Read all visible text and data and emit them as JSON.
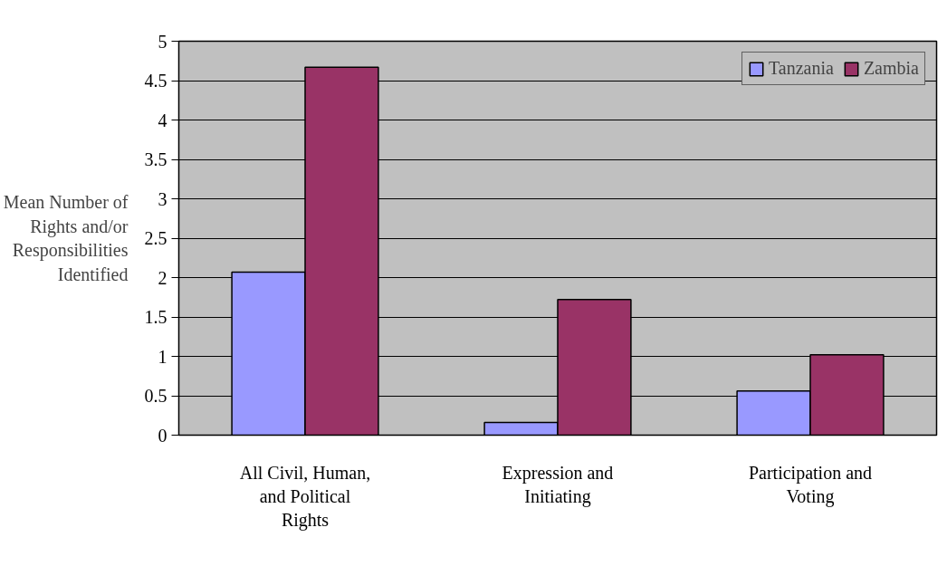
{
  "chart_data": {
    "type": "bar",
    "ylabel": "Mean Number of Rights and/or Responsibilities Identified",
    "categories": [
      "All Civil, Human, and Political Rights",
      "Expression and Initiating",
      "Participation and Voting"
    ],
    "series": [
      {
        "name": "Tanzania",
        "color": "#9999ff",
        "values": [
          2.07,
          0.16,
          0.56
        ]
      },
      {
        "name": "Zambia",
        "color": "#993366",
        "values": [
          4.67,
          1.72,
          1.02
        ]
      }
    ],
    "ylim": [
      0,
      5
    ],
    "yticks": [
      0,
      0.5,
      1,
      1.5,
      2,
      2.5,
      3,
      3.5,
      4,
      4.5,
      5
    ],
    "grid": "y",
    "legend": "top right"
  }
}
